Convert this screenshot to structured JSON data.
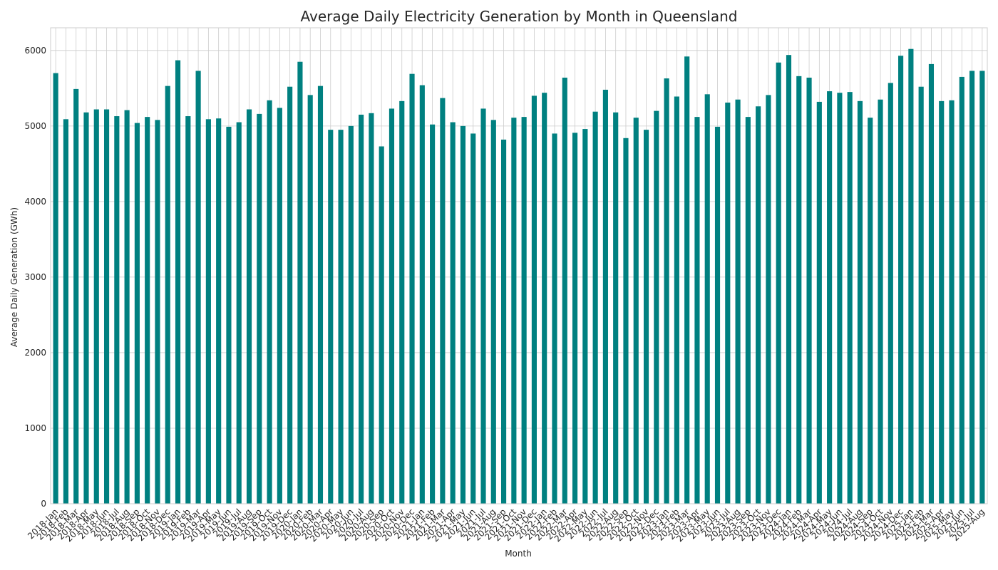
{
  "chart_data": {
    "type": "bar",
    "title": "Average Daily Electricity Generation by Month in Queensland",
    "xlabel": "Month",
    "ylabel": "Average Daily Generation (GWh)",
    "ylim": [
      0,
      6300
    ],
    "yticks": [
      0,
      1000,
      2000,
      3000,
      4000,
      5000,
      6000
    ],
    "grid": true,
    "legend": "none",
    "bar_color": "#008080",
    "categories": [
      "2018-Jan",
      "2018-Feb",
      "2018-Mar",
      "2018-Apr",
      "2018-May",
      "2018-Jun",
      "2018-Jul",
      "2018-Aug",
      "2018-Sep",
      "2018-Oct",
      "2018-Nov",
      "2018-Dec",
      "2019-Jan",
      "2019-Feb",
      "2019-Mar",
      "2019-Apr",
      "2019-May",
      "2019-Jun",
      "2019-Jul",
      "2019-Aug",
      "2019-Sep",
      "2019-Oct",
      "2019-Nov",
      "2019-Dec",
      "2020-Jan",
      "2020-Feb",
      "2020-Mar",
      "2020-Apr",
      "2020-May",
      "2020-Jun",
      "2020-Jul",
      "2020-Aug",
      "2020-Sep",
      "2020-Oct",
      "2020-Nov",
      "2020-Dec",
      "2021-Jan",
      "2021-Feb",
      "2021-Mar",
      "2021-Apr",
      "2021-May",
      "2021-Jun",
      "2021-Jul",
      "2021-Aug",
      "2021-Sep",
      "2021-Oct",
      "2021-Nov",
      "2021-Dec",
      "2022-Jan",
      "2022-Feb",
      "2022-Mar",
      "2022-Apr",
      "2022-May",
      "2022-Jun",
      "2022-Jul",
      "2022-Aug",
      "2022-Sep",
      "2022-Oct",
      "2022-Nov",
      "2022-Dec",
      "2023-Jan",
      "2023-Feb",
      "2023-Mar",
      "2023-Apr",
      "2023-May",
      "2023-Jun",
      "2023-Jul",
      "2023-Aug",
      "2023-Sep",
      "2023-Oct",
      "2023-Nov",
      "2023-Dec",
      "2024-Jan",
      "2024-Feb",
      "2024-Mar",
      "2024-Apr",
      "2024-May",
      "2024-Jun",
      "2024-Jul",
      "2024-Aug",
      "2024-Sep",
      "2024-Oct",
      "2024-Nov",
      "2024-Dec",
      "2025-Jan",
      "2025-Feb",
      "2025-Mar",
      "2025-Apr",
      "2025-May",
      "2025-Jun",
      "2025-Jul",
      "2025-Aug"
    ],
    "values": [
      5700,
      5090,
      5490,
      5180,
      5220,
      5220,
      5130,
      5210,
      5040,
      5120,
      5080,
      5530,
      5870,
      5130,
      5730,
      5090,
      5100,
      4990,
      5050,
      5220,
      5160,
      5340,
      5240,
      5520,
      5850,
      5410,
      5530,
      4950,
      4950,
      5000,
      5150,
      5170,
      4730,
      5230,
      5330,
      5690,
      5540,
      5020,
      5370,
      5050,
      5000,
      4900,
      5230,
      5080,
      4820,
      5110,
      5120,
      5400,
      5440,
      4900,
      5640,
      4910,
      4960,
      5190,
      5480,
      5180,
      4840,
      5110,
      4950,
      5200,
      5630,
      5390,
      5920,
      5120,
      5420,
      4990,
      5310,
      5350,
      5120,
      5260,
      5410,
      5840,
      5940,
      5660,
      5640,
      5320,
      5460,
      5440,
      5450,
      5330,
      5110,
      5350,
      5570,
      5930,
      6020,
      5520,
      5820,
      5330,
      5340,
      5650,
      5730,
      5730
    ]
  }
}
